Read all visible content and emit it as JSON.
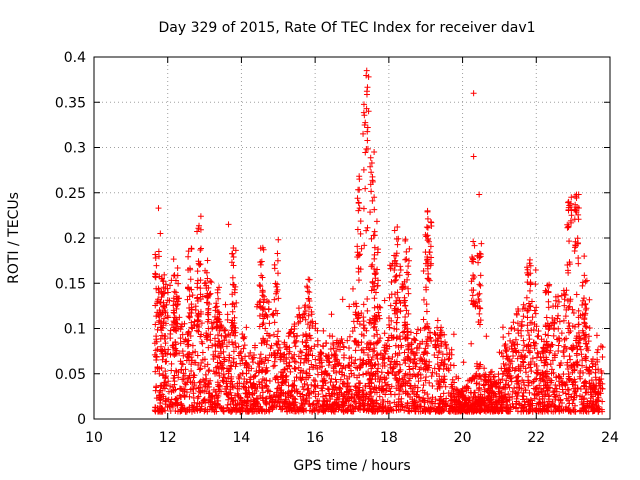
{
  "chart_data": {
    "type": "scatter",
    "title": "Day 329 of 2015, Rate Of TEC Index for receiver dav1",
    "xlabel": "GPS time / hours",
    "ylabel": "ROTI / TECUs",
    "xlim": [
      10,
      24
    ],
    "ylim": [
      0,
      0.4
    ],
    "xticks": [
      "10",
      "12",
      "14",
      "16",
      "18",
      "20",
      "22",
      "24"
    ],
    "yticks": [
      "0",
      "0.05",
      "0.1",
      "0.15",
      "0.2",
      "0.25",
      "0.3",
      "0.35",
      "0.4"
    ],
    "grid": true,
    "marker": "plus",
    "marker_color": "#ff0000",
    "series": [
      {
        "x_range": [
          11.65,
          23.8
        ],
        "notable_points": [
          {
            "x": 11.75,
            "y": 0.233
          },
          {
            "x": 11.8,
            "y": 0.205
          },
          {
            "x": 12.9,
            "y": 0.224
          },
          {
            "x": 13.65,
            "y": 0.215
          },
          {
            "x": 15.0,
            "y": 0.198
          },
          {
            "x": 17.2,
            "y": 0.265
          },
          {
            "x": 17.4,
            "y": 0.385
          },
          {
            "x": 17.45,
            "y": 0.378
          },
          {
            "x": 17.45,
            "y": 0.34
          },
          {
            "x": 17.3,
            "y": 0.315
          },
          {
            "x": 17.6,
            "y": 0.295
          },
          {
            "x": 17.6,
            "y": 0.245
          },
          {
            "x": 19.05,
            "y": 0.23
          },
          {
            "x": 20.3,
            "y": 0.36
          },
          {
            "x": 20.3,
            "y": 0.29
          },
          {
            "x": 20.45,
            "y": 0.248
          },
          {
            "x": 22.95,
            "y": 0.245
          },
          {
            "x": 23.15,
            "y": 0.248
          },
          {
            "x": 23.3,
            "y": 0.18
          }
        ]
      }
    ]
  }
}
